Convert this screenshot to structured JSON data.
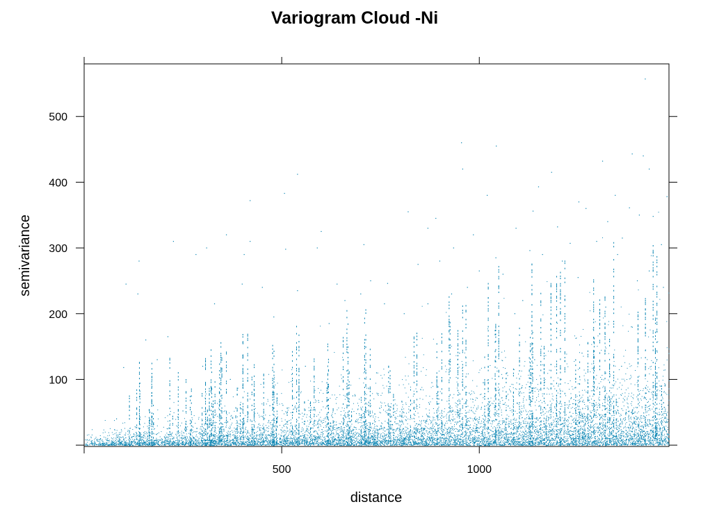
{
  "chart_data": {
    "type": "scatter",
    "title": "Variogram Cloud -Ni",
    "xlabel": "distance",
    "ylabel": "semivariance",
    "xlim": [
      0,
      1480
    ],
    "ylim": [
      -2,
      580
    ],
    "x_ticks": [
      {
        "value": 500,
        "label": "500"
      },
      {
        "value": 1000,
        "label": "1000"
      }
    ],
    "y_ticks": [
      {
        "value": 100,
        "label": "100"
      },
      {
        "value": 200,
        "label": "200"
      },
      {
        "value": 300,
        "label": "300"
      },
      {
        "value": 400,
        "label": "400"
      },
      {
        "value": 500,
        "label": "500"
      }
    ],
    "point_color": "#0080b0",
    "grid": false,
    "legend": "none",
    "series": [
      {
        "points": [
          [
            1420,
            557
          ],
          [
            955,
            460
          ],
          [
            1043,
            455
          ],
          [
            1387,
            443
          ],
          [
            1415,
            440
          ],
          [
            1312,
            432
          ],
          [
            1430,
            420
          ],
          [
            958,
            420
          ],
          [
            1183,
            415
          ],
          [
            540,
            412
          ],
          [
            1150,
            393
          ],
          [
            1475,
            378
          ],
          [
            507,
            383
          ],
          [
            1020,
            380
          ],
          [
            1344,
            380
          ],
          [
            1252,
            370
          ],
          [
            1380,
            361
          ],
          [
            820,
            355
          ],
          [
            1136,
            356
          ],
          [
            1405,
            350
          ],
          [
            1270,
            360
          ],
          [
            1440,
            348
          ],
          [
            1093,
            330
          ],
          [
            420,
            372
          ],
          [
            985,
            320
          ],
          [
            1325,
            340
          ],
          [
            1198,
            332
          ],
          [
            1362,
            315
          ],
          [
            1461,
            305
          ],
          [
            870,
            330
          ],
          [
            890,
            345
          ],
          [
            600,
            325
          ],
          [
            420,
            310
          ],
          [
            226,
            310
          ],
          [
            510,
            298
          ],
          [
            1230,
            307
          ],
          [
            1128,
            296
          ],
          [
            360,
            320
          ],
          [
            310,
            300
          ],
          [
            405,
            290
          ],
          [
            590,
            300
          ],
          [
            283,
            290
          ],
          [
            708,
            305
          ],
          [
            935,
            300
          ],
          [
            1160,
            290
          ],
          [
            1297,
            310
          ],
          [
            1042,
            285
          ],
          [
            845,
            275
          ],
          [
            768,
            246
          ],
          [
            640,
            245
          ],
          [
            725,
            250
          ],
          [
            900,
            280
          ],
          [
            1000,
            265
          ],
          [
            1060,
            260
          ],
          [
            1210,
            280
          ],
          [
            1350,
            290
          ],
          [
            1430,
            265
          ],
          [
            106,
            245
          ],
          [
            136,
            230
          ],
          [
            156,
            160
          ],
          [
            212,
            165
          ],
          [
            400,
            245
          ],
          [
            451,
            240
          ],
          [
            540,
            235
          ],
          [
            700,
            230
          ],
          [
            760,
            215
          ],
          [
            810,
            200
          ],
          [
            870,
            215
          ],
          [
            970,
            240
          ],
          [
            1110,
            220
          ],
          [
            1250,
            255
          ],
          [
            1400,
            250
          ],
          [
            1466,
            240
          ],
          [
            330,
            215
          ],
          [
            480,
            195
          ],
          [
            620,
            185
          ],
          [
            660,
            220
          ],
          [
            930,
            230
          ],
          [
            1090,
            200
          ],
          [
            1180,
            185
          ],
          [
            1320,
            210
          ],
          [
            1385,
            180
          ],
          [
            82,
            40
          ],
          [
            100,
            118
          ],
          [
            139,
            280
          ],
          [
            185,
            130
          ],
          [
            250,
            52
          ],
          [
            300,
            120
          ],
          [
            370,
            100
          ],
          [
            430,
            85
          ],
          [
            470,
            60
          ],
          [
            560,
            120
          ],
          [
            680,
            75
          ],
          [
            740,
            110
          ],
          [
            880,
            95
          ],
          [
            950,
            140
          ],
          [
            1010,
            95
          ],
          [
            1070,
            110
          ],
          [
            1140,
            130
          ],
          [
            1200,
            90
          ],
          [
            1260,
            140
          ],
          [
            1310,
            100
          ],
          [
            1360,
            120
          ],
          [
            1420,
            105
          ],
          [
            1470,
            90
          ]
        ]
      }
    ]
  }
}
